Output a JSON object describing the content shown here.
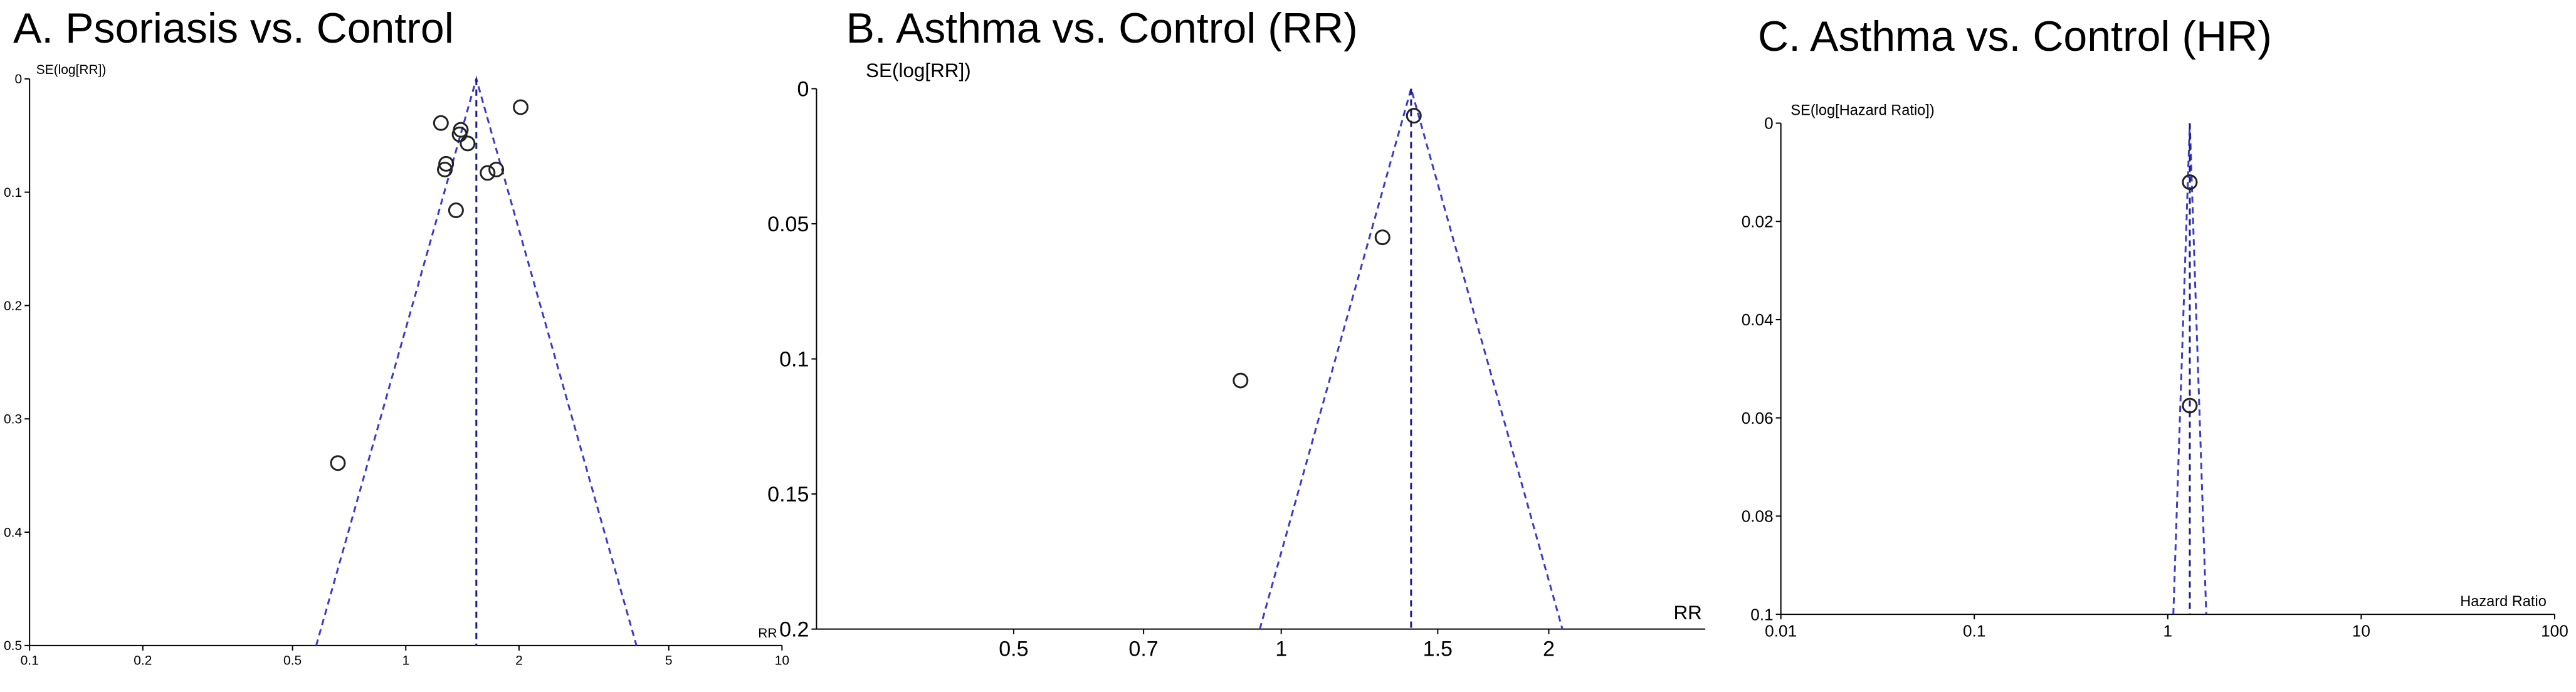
{
  "chart_data": [
    {
      "type": "funnel",
      "title": "A. Psoriasis vs. Control",
      "x_label": "RR",
      "y_label": "SE(log[RR])",
      "xscale": "log",
      "y_reversed": true,
      "xlim": [
        0.1,
        10
      ],
      "ylim": [
        0,
        0.5
      ],
      "xticks": [
        0.1,
        0.2,
        0.5,
        1,
        2,
        5,
        10
      ],
      "yticks": [
        0,
        0.1,
        0.2,
        0.3,
        0.4,
        0.5
      ],
      "pooled": 1.54,
      "color": "#3a3acc",
      "x": [
        1.24,
        1.39,
        1.4,
        1.46,
        2.02,
        1.28,
        1.27,
        1.65,
        1.74,
        1.36,
        0.66
      ],
      "values": [
        0.039,
        0.049,
        0.045,
        0.057,
        0.025,
        0.075,
        0.08,
        0.083,
        0.08,
        0.116,
        0.339
      ]
    },
    {
      "type": "funnel",
      "title": "B. Asthma vs. Control (RR)",
      "x_label": "RR",
      "y_label": "SE(log[RR])",
      "xscale": "log",
      "y_reversed": true,
      "xlim": [
        0.3,
        3
      ],
      "ylim": [
        0,
        0.2
      ],
      "xticks": [
        0.5,
        0.7,
        1,
        1.5,
        2
      ],
      "yticks": [
        0,
        0.05,
        0.1,
        0.15,
        0.2
      ],
      "pooled": 1.4,
      "color": "#3a3acc",
      "x": [
        1.41,
        1.3,
        0.9
      ],
      "values": [
        0.01,
        0.055,
        0.108
      ]
    },
    {
      "type": "funnel",
      "title": "C. Asthma vs. Control (HR)",
      "x_label": "Hazard Ratio",
      "y_label": "SE(log[Hazard Ratio])",
      "xscale": "log",
      "y_reversed": true,
      "xlim": [
        0.01,
        100
      ],
      "ylim": [
        0,
        0.1
      ],
      "xticks": [
        0.01,
        0.1,
        1,
        10,
        100
      ],
      "yticks": [
        0,
        0.02,
        0.04,
        0.06,
        0.08,
        0.1
      ],
      "pooled": 1.3,
      "color": "#3a3acc",
      "x": [
        1.3,
        1.3
      ],
      "values": [
        0.012,
        0.0575
      ]
    }
  ]
}
